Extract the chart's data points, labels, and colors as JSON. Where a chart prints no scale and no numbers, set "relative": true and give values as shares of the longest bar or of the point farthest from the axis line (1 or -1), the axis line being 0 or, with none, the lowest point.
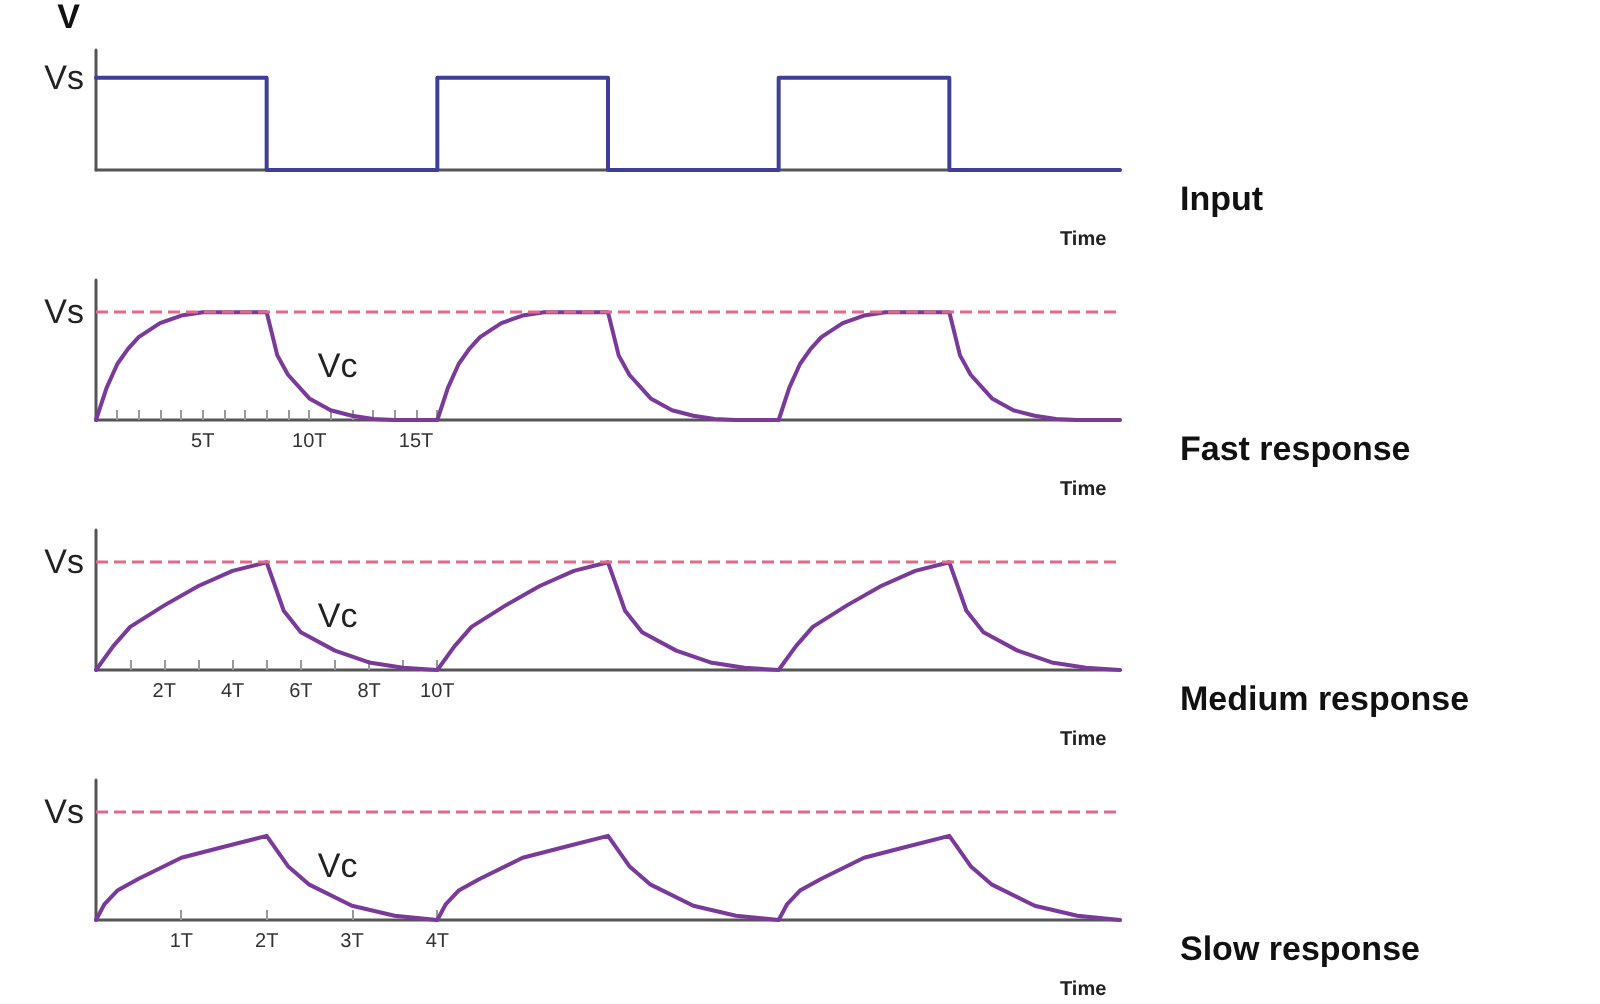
{
  "chart_data": [
    {
      "type": "step",
      "xlabel": "Time",
      "ylabel": "V",
      "relative": true,
      "categories": [
        null,
        null,
        null,
        null,
        null,
        null,
        null
      ],
      "series": [
        {
          "color": "#3f3f9a",
          "values": [
            1,
            0,
            1,
            0,
            1,
            0,
            0
          ]
        }
      ],
      "annotations": [
        "Vs",
        "Input"
      ],
      "grid": false,
      "marker": "none",
      "line_style": "solid"
    },
    {
      "type": "line",
      "xlabel": "Time",
      "relative": true,
      "x": [
        0,
        0.5,
        1,
        1.5,
        2,
        3,
        4,
        5,
        8,
        8.5,
        9,
        10,
        11,
        12,
        13,
        14,
        16,
        16.5,
        17,
        17.5,
        18,
        19,
        20,
        21,
        24,
        24.5,
        25,
        26,
        27,
        28,
        29,
        30,
        32,
        32.5,
        33,
        33.5,
        34,
        35,
        36,
        37,
        40,
        40.5,
        41,
        42,
        43,
        44,
        45,
        46,
        48
      ],
      "series": [
        {
          "color": "#7a3a9a",
          "values": [
            0,
            0.3,
            0.52,
            0.66,
            0.77,
            0.9,
            0.97,
            1,
            1,
            0.6,
            0.42,
            0.2,
            0.09,
            0.04,
            0.01,
            0,
            0,
            0.3,
            0.52,
            0.66,
            0.77,
            0.9,
            0.97,
            1,
            1,
            0.6,
            0.42,
            0.2,
            0.09,
            0.04,
            0.01,
            0,
            0,
            0.3,
            0.52,
            0.66,
            0.77,
            0.9,
            0.97,
            1,
            1,
            0.6,
            0.42,
            0.2,
            0.09,
            0.04,
            0.01,
            0,
            0
          ]
        }
      ],
      "xlim": [
        0,
        48
      ],
      "xticks": [
        {
          "value": 1,
          "label": null
        },
        {
          "value": 2,
          "label": null
        },
        {
          "value": 3,
          "label": null
        },
        {
          "value": 4,
          "label": null
        },
        {
          "value": 5,
          "label": "5T"
        },
        {
          "value": 6,
          "label": null
        },
        {
          "value": 7,
          "label": null
        },
        {
          "value": 8,
          "label": null
        },
        {
          "value": 9,
          "label": null
        },
        {
          "value": 10,
          "label": "10T"
        },
        {
          "value": 11,
          "label": null
        },
        {
          "value": 12,
          "label": null
        },
        {
          "value": 13,
          "label": null
        },
        {
          "value": 14,
          "label": null
        },
        {
          "value": 15,
          "label": "15T"
        },
        {
          "value": 16,
          "label": null
        }
      ],
      "ref_lines": [
        {
          "axis": "y",
          "value": 1,
          "color": "#e06a8a",
          "line_style": "dashed"
        }
      ],
      "annotations": [
        "Vs",
        "Vc",
        "Fast response"
      ],
      "grid": false,
      "marker": "none",
      "line_style": "solid"
    },
    {
      "type": "line",
      "xlabel": "Time",
      "relative": true,
      "x": [
        0,
        0.5,
        1,
        2,
        3,
        4,
        5,
        5.5,
        6,
        7,
        8,
        9,
        10,
        10.5,
        11,
        12,
        13,
        14,
        15,
        15.5,
        16,
        17,
        18,
        19,
        20,
        20.5,
        21,
        22,
        23,
        24,
        25,
        25.5,
        26,
        27,
        28,
        29,
        30
      ],
      "series": [
        {
          "color": "#7a3a9a",
          "values": [
            0,
            0.22,
            0.4,
            0.6,
            0.78,
            0.92,
            1,
            0.55,
            0.35,
            0.18,
            0.07,
            0.02,
            0,
            0.22,
            0.4,
            0.6,
            0.78,
            0.92,
            1,
            0.55,
            0.35,
            0.18,
            0.07,
            0.02,
            0,
            0.22,
            0.4,
            0.6,
            0.78,
            0.92,
            1,
            0.55,
            0.35,
            0.18,
            0.07,
            0.02,
            0
          ]
        }
      ],
      "xlim": [
        0,
        30
      ],
      "xticks": [
        {
          "value": 1,
          "label": null
        },
        {
          "value": 2,
          "label": "2T"
        },
        {
          "value": 3,
          "label": null
        },
        {
          "value": 4,
          "label": "4T"
        },
        {
          "value": 5,
          "label": null
        },
        {
          "value": 6,
          "label": "6T"
        },
        {
          "value": 7,
          "label": null
        },
        {
          "value": 8,
          "label": "8T"
        },
        {
          "value": 9,
          "label": null
        },
        {
          "value": 10,
          "label": "10T"
        }
      ],
      "ref_lines": [
        {
          "axis": "y",
          "value": 1,
          "color": "#e06a8a",
          "line_style": "dashed"
        }
      ],
      "annotations": [
        "Vs",
        "Vc",
        "Medium response"
      ],
      "grid": false,
      "marker": "none",
      "line_style": "solid"
    },
    {
      "type": "line",
      "xlabel": "Time",
      "relative": true,
      "x": [
        0,
        0.1,
        0.25,
        0.5,
        1,
        1.5,
        2,
        2.25,
        2.5,
        3,
        3.5,
        4,
        4.1,
        4.25,
        4.5,
        5,
        5.5,
        6,
        6.25,
        6.5,
        7,
        7.5,
        8,
        8.1,
        8.25,
        8.5,
        9,
        9.5,
        10,
        10.25,
        10.5,
        11,
        11.5,
        12
      ],
      "series": [
        {
          "color": "#7a3a9a",
          "values": [
            0,
            0.19,
            0.35,
            0.49,
            0.74,
            0.87,
            1,
            0.64,
            0.42,
            0.17,
            0.05,
            0,
            0.19,
            0.35,
            0.49,
            0.74,
            0.87,
            1,
            0.64,
            0.42,
            0.17,
            0.05,
            0,
            0.19,
            0.35,
            0.49,
            0.74,
            0.87,
            1,
            0.64,
            0.42,
            0.17,
            0.05,
            0
          ]
        }
      ],
      "xlim": [
        0,
        12
      ],
      "xticks": [
        {
          "value": 1,
          "label": "1T"
        },
        {
          "value": 2,
          "label": "2T"
        },
        {
          "value": 3,
          "label": "3T"
        },
        {
          "value": 4,
          "label": "4T"
        }
      ],
      "ref_lines": [
        {
          "axis": "y",
          "value": 1.28,
          "color": "#e06a8a",
          "line_style": "dashed"
        }
      ],
      "annotations": [
        "Vs",
        "Vc",
        "Slow response"
      ],
      "grid": false,
      "marker": "none",
      "line_style": "solid"
    }
  ]
}
